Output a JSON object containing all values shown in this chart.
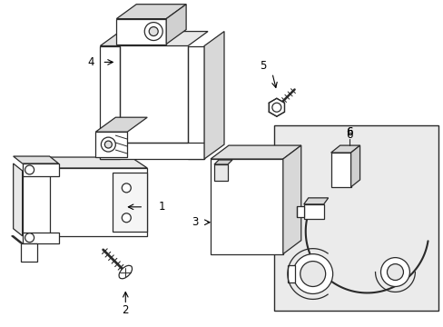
{
  "bg_color": "#ffffff",
  "line_color": "#2a2a2a",
  "label_color": "#000000",
  "box6_bg": "#ebebeb",
  "figsize": [
    4.89,
    3.6
  ],
  "dpi": 100
}
